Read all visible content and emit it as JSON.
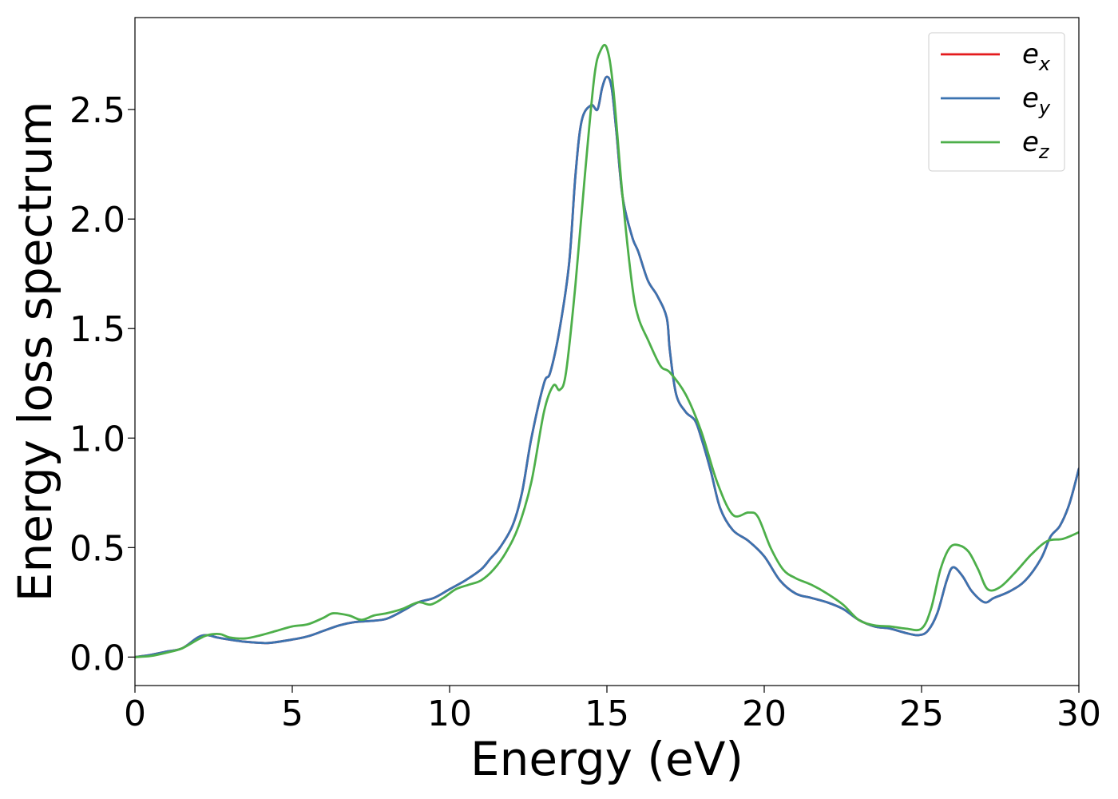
{
  "chart_data": {
    "type": "line",
    "xlabel": "Energy (eV)",
    "ylabel": "Energy loss spectrum",
    "xlim": [
      0,
      30
    ],
    "ylim": [
      -0.13,
      2.92
    ],
    "xticks": [
      0,
      5,
      10,
      15,
      20,
      25,
      30
    ],
    "xtick_labels": [
      "0",
      "5",
      "10",
      "15",
      "20",
      "25",
      "30"
    ],
    "yticks": [
      0.0,
      0.5,
      1.0,
      1.5,
      2.0,
      2.5
    ],
    "ytick_labels": [
      "0.0",
      "0.5",
      "1.0",
      "1.5",
      "2.0",
      "2.5"
    ],
    "grid": false,
    "legend_position": "top-right",
    "series": [
      {
        "name": "e_x",
        "label_base": "e",
        "label_sub": "x",
        "color": "#e41a1c",
        "x": [
          0,
          0.5,
          1,
          1.5,
          2,
          2.3,
          2.6,
          3,
          3.5,
          4,
          4.3,
          5,
          5.5,
          6,
          6.5,
          7,
          7.5,
          8,
          8.5,
          9,
          9.5,
          10,
          10.5,
          11,
          11.3,
          11.6,
          12,
          12.3,
          12.6,
          13,
          13.2,
          13.5,
          13.8,
          14,
          14.2,
          14.5,
          14.7,
          14.85,
          15,
          15.15,
          15.3,
          15.5,
          15.8,
          16,
          16.3,
          16.6,
          16.9,
          17,
          17.2,
          17.5,
          17.8,
          18,
          18.3,
          18.6,
          19,
          19.5,
          20,
          20.5,
          21,
          21.5,
          22,
          22.5,
          23,
          23.5,
          24,
          24.5,
          24.9,
          25.2,
          25.5,
          25.8,
          26,
          26.3,
          26.6,
          27,
          27.3,
          27.8,
          28.3,
          28.8,
          29.1,
          29.4,
          29.7,
          30
        ],
        "y": [
          0.0,
          0.01,
          0.025,
          0.04,
          0.09,
          0.1,
          0.09,
          0.08,
          0.07,
          0.065,
          0.065,
          0.08,
          0.095,
          0.12,
          0.145,
          0.16,
          0.165,
          0.175,
          0.21,
          0.25,
          0.27,
          0.31,
          0.35,
          0.4,
          0.45,
          0.5,
          0.6,
          0.75,
          1.0,
          1.25,
          1.3,
          1.5,
          1.8,
          2.2,
          2.45,
          2.52,
          2.5,
          2.6,
          2.65,
          2.6,
          2.4,
          2.1,
          1.92,
          1.85,
          1.72,
          1.65,
          1.55,
          1.4,
          1.2,
          1.12,
          1.08,
          1.0,
          0.85,
          0.68,
          0.58,
          0.53,
          0.46,
          0.35,
          0.29,
          0.27,
          0.25,
          0.22,
          0.17,
          0.14,
          0.13,
          0.11,
          0.1,
          0.12,
          0.2,
          0.35,
          0.41,
          0.37,
          0.3,
          0.25,
          0.27,
          0.3,
          0.35,
          0.45,
          0.55,
          0.6,
          0.7,
          0.86
        ]
      },
      {
        "name": "e_y",
        "label_base": "e",
        "label_sub": "y",
        "color": "#3b73b0",
        "x": [
          0,
          0.5,
          1,
          1.5,
          2,
          2.3,
          2.6,
          3,
          3.5,
          4,
          4.3,
          5,
          5.5,
          6,
          6.5,
          7,
          7.5,
          8,
          8.5,
          9,
          9.5,
          10,
          10.5,
          11,
          11.3,
          11.6,
          12,
          12.3,
          12.6,
          13,
          13.2,
          13.5,
          13.8,
          14,
          14.2,
          14.5,
          14.7,
          14.85,
          15,
          15.15,
          15.3,
          15.5,
          15.8,
          16,
          16.3,
          16.6,
          16.9,
          17,
          17.2,
          17.5,
          17.8,
          18,
          18.3,
          18.6,
          19,
          19.5,
          20,
          20.5,
          21,
          21.5,
          22,
          22.5,
          23,
          23.5,
          24,
          24.5,
          24.9,
          25.2,
          25.5,
          25.8,
          26,
          26.3,
          26.6,
          27,
          27.3,
          27.8,
          28.3,
          28.8,
          29.1,
          29.4,
          29.7,
          30
        ],
        "y": [
          0.0,
          0.01,
          0.025,
          0.04,
          0.09,
          0.1,
          0.09,
          0.08,
          0.07,
          0.065,
          0.065,
          0.08,
          0.095,
          0.12,
          0.145,
          0.16,
          0.165,
          0.175,
          0.21,
          0.25,
          0.27,
          0.31,
          0.35,
          0.4,
          0.45,
          0.5,
          0.6,
          0.75,
          1.0,
          1.25,
          1.3,
          1.5,
          1.8,
          2.2,
          2.45,
          2.52,
          2.5,
          2.6,
          2.65,
          2.6,
          2.4,
          2.1,
          1.92,
          1.85,
          1.72,
          1.65,
          1.55,
          1.4,
          1.2,
          1.12,
          1.08,
          1.0,
          0.85,
          0.68,
          0.58,
          0.53,
          0.46,
          0.35,
          0.29,
          0.27,
          0.25,
          0.22,
          0.17,
          0.14,
          0.13,
          0.11,
          0.1,
          0.12,
          0.2,
          0.35,
          0.41,
          0.37,
          0.3,
          0.25,
          0.27,
          0.3,
          0.35,
          0.45,
          0.55,
          0.6,
          0.7,
          0.86
        ]
      },
      {
        "name": "e_z",
        "label_base": "e",
        "label_sub": "z",
        "color": "#4daf4a",
        "x": [
          0,
          0.5,
          1,
          1.5,
          2,
          2.3,
          2.7,
          3,
          3.5,
          4,
          4.5,
          5,
          5.5,
          6,
          6.3,
          6.8,
          7.2,
          7.6,
          8,
          8.5,
          9,
          9.4,
          9.8,
          10.2,
          10.6,
          11,
          11.4,
          11.8,
          12.2,
          12.6,
          13,
          13.3,
          13.5,
          13.7,
          14,
          14.3,
          14.6,
          14.8,
          15,
          15.2,
          15.5,
          15.8,
          16,
          16.3,
          16.7,
          17,
          17.5,
          18,
          18.5,
          19,
          19.5,
          19.8,
          20.2,
          20.6,
          21,
          21.5,
          22,
          22.5,
          23,
          23.5,
          24,
          24.5,
          25,
          25.3,
          25.6,
          25.9,
          26.2,
          26.5,
          26.8,
          27.1,
          27.5,
          28,
          28.5,
          29,
          29.5,
          30
        ],
        "y": [
          0.0,
          0.005,
          0.02,
          0.04,
          0.08,
          0.1,
          0.105,
          0.09,
          0.085,
          0.1,
          0.12,
          0.14,
          0.15,
          0.18,
          0.2,
          0.19,
          0.17,
          0.19,
          0.2,
          0.22,
          0.25,
          0.24,
          0.27,
          0.31,
          0.33,
          0.35,
          0.4,
          0.48,
          0.6,
          0.8,
          1.12,
          1.24,
          1.22,
          1.3,
          1.7,
          2.2,
          2.65,
          2.77,
          2.78,
          2.6,
          2.1,
          1.7,
          1.55,
          1.45,
          1.33,
          1.3,
          1.2,
          1.03,
          0.8,
          0.65,
          0.66,
          0.64,
          0.5,
          0.4,
          0.36,
          0.33,
          0.29,
          0.24,
          0.17,
          0.145,
          0.14,
          0.13,
          0.13,
          0.22,
          0.4,
          0.5,
          0.51,
          0.48,
          0.4,
          0.31,
          0.32,
          0.39,
          0.47,
          0.53,
          0.54,
          0.57
        ]
      }
    ]
  }
}
